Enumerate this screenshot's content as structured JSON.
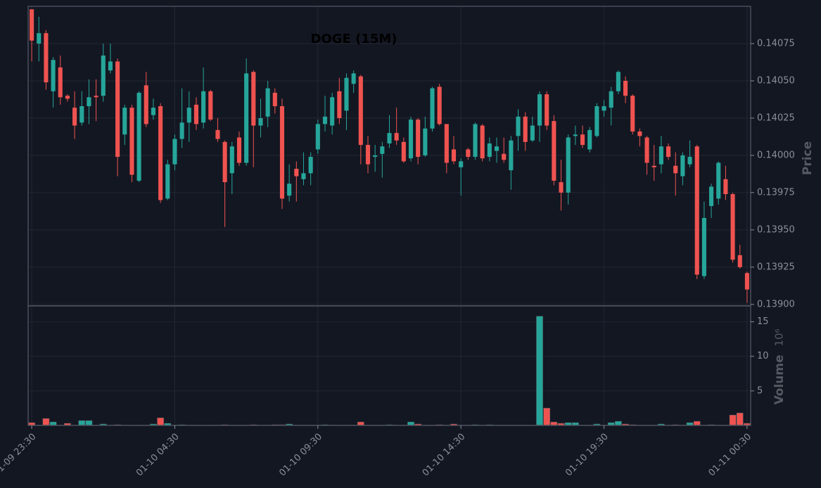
{
  "chart_data": {
    "type": "candlestick",
    "title": "DOGE (15M)",
    "ylabel": "Price",
    "y2label": "Volume",
    "y2unit": "10⁶",
    "up_color": "#26a69a",
    "down_color": "#ef5350",
    "grid": true,
    "categories": [
      "01-09 23:30",
      null,
      null,
      null,
      null,
      null,
      null,
      null,
      null,
      null,
      null,
      null,
      null,
      null,
      null,
      null,
      null,
      null,
      null,
      null,
      "01-10 04:30",
      null,
      null,
      null,
      null,
      null,
      null,
      null,
      null,
      null,
      null,
      null,
      null,
      null,
      null,
      null,
      null,
      null,
      null,
      null,
      "01-10 09:30",
      null,
      null,
      null,
      null,
      null,
      null,
      null,
      null,
      null,
      null,
      null,
      null,
      null,
      null,
      null,
      null,
      null,
      null,
      null,
      "01-10 14:30",
      null,
      null,
      null,
      null,
      null,
      null,
      null,
      null,
      null,
      null,
      null,
      null,
      null,
      null,
      null,
      null,
      null,
      null,
      null,
      "01-10 19:30",
      null,
      null,
      null,
      null,
      null,
      null,
      null,
      null,
      null,
      null,
      null,
      null,
      null,
      null,
      null,
      null,
      null,
      null,
      null,
      "01-11 00:30"
    ],
    "open": [
      0.14098,
      0.14075,
      0.14082,
      0.14043,
      0.14059,
      0.1404,
      0.14032,
      0.14022,
      0.14033,
      0.1404,
      0.1404,
      0.14057,
      0.14063,
      0.14014,
      0.14032,
      0.13983,
      0.14047,
      0.14027,
      0.14033,
      0.13971,
      0.13994,
      0.14011,
      0.14022,
      0.14034,
      0.14022,
      0.14043,
      0.14017,
      0.14009,
      0.13988,
      0.14012,
      0.13995,
      0.14056,
      0.1402,
      0.14026,
      0.14042,
      0.14033,
      0.13973,
      0.13991,
      0.13984,
      0.13988,
      0.14004,
      0.14021,
      0.1402,
      0.14043,
      0.1403,
      0.14048,
      0.14053,
      0.14007,
      0.13999,
      0.14001,
      0.14008,
      0.14015,
      0.14009,
      0.13998,
      0.14024,
      0.14,
      0.14018,
      0.14046,
      0.14021,
      0.14004,
      0.13992,
      0.14004,
      0.13999,
      0.1402,
      0.13999,
      0.14003,
      0.14001,
      0.1399,
      0.14013,
      0.14026,
      0.1401,
      0.1402,
      0.14041,
      0.14023,
      0.13982,
      0.13975,
      0.14013,
      0.14014,
      0.14004,
      0.14013,
      0.1403,
      0.14032,
      0.14043,
      0.1405,
      0.1404,
      0.14016,
      0.14012,
      0.13993,
      0.13994,
      0.14006,
      0.13993,
      0.13986,
      0.13994,
      0.14006,
      0.13919,
      0.13966,
      0.13971,
      0.13984,
      0.13974,
      0.13933,
      0.13921
    ],
    "high": [
      0.14098,
      0.14093,
      0.14084,
      0.14066,
      0.14067,
      0.14041,
      0.14043,
      0.14043,
      0.14051,
      0.14051,
      0.14075,
      0.14075,
      0.14065,
      0.14034,
      0.14034,
      0.14043,
      0.14056,
      0.14038,
      0.14035,
      0.13997,
      0.14014,
      0.14045,
      0.14043,
      0.14039,
      0.14059,
      0.14044,
      0.14025,
      0.1401,
      0.14009,
      0.14016,
      0.14065,
      0.14057,
      0.14038,
      0.1405,
      0.14045,
      0.14038,
      0.13994,
      0.13996,
      0.14002,
      0.14002,
      0.14024,
      0.1404,
      0.14042,
      0.14052,
      0.14055,
      0.14057,
      0.14054,
      0.14013,
      0.14007,
      0.14009,
      0.14027,
      0.14032,
      0.14012,
      0.14026,
      0.14025,
      0.14026,
      0.14046,
      0.14048,
      0.14021,
      0.14013,
      0.13998,
      0.14005,
      0.14022,
      0.14021,
      0.14012,
      0.14012,
      0.14012,
      0.14013,
      0.14031,
      0.14029,
      0.14026,
      0.14043,
      0.14043,
      0.14027,
      0.13997,
      0.14014,
      0.1402,
      0.1402,
      0.14019,
      0.14035,
      0.14037,
      0.14046,
      0.14057,
      0.14053,
      0.14041,
      0.14018,
      0.14013,
      0.14007,
      0.14013,
      0.14008,
      0.14002,
      0.14002,
      0.1401,
      0.14007,
      0.13969,
      0.13981,
      0.13996,
      0.13993,
      0.13975,
      0.1394,
      0.13922
    ],
    "low": [
      0.14063,
      0.14063,
      0.14044,
      0.14032,
      0.14034,
      0.14036,
      0.14011,
      0.1402,
      0.14021,
      0.14023,
      0.14036,
      0.14055,
      0.13986,
      0.14007,
      0.13982,
      0.13982,
      0.14019,
      0.14024,
      0.13968,
      0.1397,
      0.1399,
      0.14005,
      0.14009,
      0.14017,
      0.14018,
      0.14023,
      0.14009,
      0.13952,
      0.13974,
      0.13993,
      0.13993,
      0.13992,
      0.14012,
      0.14019,
      0.14028,
      0.13964,
      0.13969,
      0.13969,
      0.1398,
      0.1398,
      0.14001,
      0.14016,
      0.14014,
      0.14021,
      0.14017,
      0.14042,
      0.13994,
      0.13988,
      0.13989,
      0.13985,
      0.14005,
      0.14007,
      0.13995,
      0.13996,
      0.13994,
      0.13999,
      0.14016,
      0.1402,
      0.13988,
      0.13994,
      0.13973,
      0.13997,
      0.13997,
      0.13996,
      0.13996,
      0.13995,
      0.13995,
      0.13977,
      0.14003,
      0.14003,
      0.14009,
      0.14009,
      0.14017,
      0.1398,
      0.13963,
      0.13967,
      0.14007,
      0.14005,
      0.14002,
      0.14012,
      0.14026,
      0.1402,
      0.14041,
      0.14035,
      0.14014,
      0.14006,
      0.13987,
      0.13983,
      0.13988,
      0.13997,
      0.13973,
      0.1398,
      0.13992,
      0.13917,
      0.13917,
      0.13958,
      0.13967,
      0.1397,
      0.13928,
      0.13924,
      0.13901
    ],
    "close": [
      0.14077,
      0.14082,
      0.14049,
      0.14064,
      0.14039,
      0.14038,
      0.1402,
      0.14033,
      0.14039,
      0.14039,
      0.14067,
      0.14063,
      0.13999,
      0.14032,
      0.13987,
      0.14042,
      0.14021,
      0.14032,
      0.1397,
      0.13994,
      0.14011,
      0.14022,
      0.14032,
      0.14021,
      0.14043,
      0.14024,
      0.14011,
      0.13982,
      0.14006,
      0.13995,
      0.14055,
      0.1402,
      0.14025,
      0.14045,
      0.14033,
      0.13971,
      0.13981,
      0.13986,
      0.13988,
      0.13999,
      0.14021,
      0.14026,
      0.14039,
      0.14025,
      0.14052,
      0.14055,
      0.14007,
      0.13994,
      0.14,
      0.14006,
      0.14015,
      0.1401,
      0.13996,
      0.14024,
      0.13999,
      0.14018,
      0.14045,
      0.14021,
      0.13995,
      0.13996,
      0.13996,
      0.13999,
      0.14021,
      0.13998,
      0.14008,
      0.14006,
      0.13997,
      0.1401,
      0.14026,
      0.14009,
      0.1402,
      0.14041,
      0.1402,
      0.13983,
      0.13975,
      0.14012,
      0.14014,
      0.14007,
      0.14017,
      0.14033,
      0.14033,
      0.14043,
      0.14056,
      0.1404,
      0.14016,
      0.14013,
      0.13995,
      0.13992,
      0.14006,
      0.13999,
      0.13988,
      0.14,
      0.13999,
      0.1392,
      0.13958,
      0.13979,
      0.13995,
      0.13974,
      0.1393,
      0.13925,
      0.1391
    ],
    "volume": [
      0.4,
      0.05,
      1.0,
      0.5,
      0.05,
      0.3,
      0.05,
      0.7,
      0.7,
      0.05,
      0.2,
      0.05,
      0.1,
      0.05,
      0.05,
      0.05,
      0.05,
      0.2,
      1.1,
      0.3,
      0.05,
      0.1,
      0.05,
      0.05,
      0.05,
      0.05,
      0.05,
      0.1,
      0.05,
      0.05,
      0.05,
      0.1,
      0.05,
      0.05,
      0.1,
      0.1,
      0.2,
      0.05,
      0.05,
      0.05,
      0.05,
      0.1,
      0.05,
      0.05,
      0.05,
      0.05,
      0.5,
      0.05,
      0.05,
      0.05,
      0.1,
      0.05,
      0.05,
      0.5,
      0.2,
      0.05,
      0.05,
      0.1,
      0.05,
      0.2,
      0.05,
      0.05,
      0.1,
      0.05,
      0.1,
      0.05,
      0.05,
      0.05,
      0.05,
      0.05,
      0.05,
      15.8,
      2.5,
      0.5,
      0.3,
      0.4,
      0.4,
      0.05,
      0.05,
      0.2,
      0.05,
      0.4,
      0.6,
      0.2,
      0.1,
      0.05,
      0.05,
      0.05,
      0.2,
      0.05,
      0.1,
      0.05,
      0.4,
      0.6,
      0.05,
      0.1,
      0.05,
      0.05,
      1.5,
      1.8,
      0.3
    ],
    "ylim": [
      0.13899,
      0.141
    ],
    "yticks": [
      {
        "value": 0.139,
        "label": "0.13900"
      },
      0.13925,
      {
        "value": 0.1395,
        "label": "0.13950"
      },
      0.13975,
      {
        "value": 0.14,
        "label": "0.14000"
      },
      0.14025,
      {
        "value": 0.1405,
        "label": "0.14050"
      },
      0.14075
    ],
    "y2lim": [
      0,
      17.3
    ],
    "y2ticks": [
      5,
      10,
      15
    ]
  }
}
